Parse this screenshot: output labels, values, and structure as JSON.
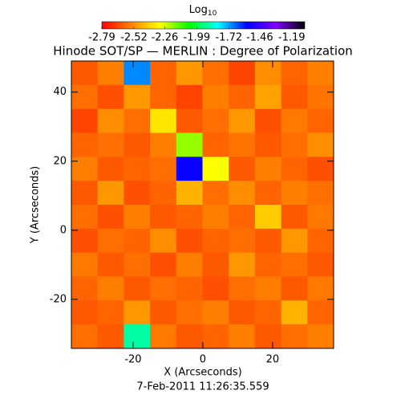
{
  "chart_data": {
    "type": "heatmap",
    "title": "Hinode SOT/SP — MERLIN : Degree of Polarization",
    "colorbar_label": {
      "text": "Log",
      "subscript": "10"
    },
    "colorbar_ticks": [
      -2.79,
      -2.52,
      -2.26,
      -1.99,
      -1.72,
      -1.46,
      -1.19
    ],
    "clim": [
      -2.79,
      -1.08
    ],
    "colormap": [
      "#ff0000",
      "#ff8000",
      "#ffff00",
      "#00ff00",
      "#00ffff",
      "#0000ff",
      "#8000ff",
      "#000000"
    ],
    "x_label": "X (Arcseconds)",
    "y_label": "Y (Arcseconds)",
    "date": "7-Feb-2011 11:26:35.559",
    "xlim": [
      -37.7,
      37.5
    ],
    "ylim": [
      -34.2,
      49
    ],
    "xticks": [
      -20,
      0,
      20
    ],
    "yticks": [
      -20,
      0,
      20,
      40
    ],
    "z": [
      [
        -2.62,
        -2.55,
        -1.7,
        -2.6,
        -2.5,
        -2.58,
        -2.66,
        -2.52,
        -2.6,
        -2.55
      ],
      [
        -2.58,
        -2.64,
        -2.5,
        -2.6,
        -2.66,
        -2.55,
        -2.6,
        -2.48,
        -2.62,
        -2.57
      ],
      [
        -2.66,
        -2.52,
        -2.58,
        -2.35,
        -2.62,
        -2.58,
        -2.5,
        -2.64,
        -2.56,
        -2.6
      ],
      [
        -2.6,
        -2.58,
        -2.62,
        -2.55,
        -2.2,
        -2.6,
        -2.57,
        -2.62,
        -2.58,
        -2.52
      ],
      [
        -2.55,
        -2.62,
        -2.6,
        -2.58,
        -1.55,
        -2.3,
        -2.62,
        -2.55,
        -2.6,
        -2.64
      ],
      [
        -2.62,
        -2.5,
        -2.64,
        -2.6,
        -2.45,
        -2.58,
        -2.52,
        -2.6,
        -2.55,
        -2.58
      ],
      [
        -2.58,
        -2.64,
        -2.55,
        -2.62,
        -2.6,
        -2.55,
        -2.6,
        -2.4,
        -2.62,
        -2.56
      ],
      [
        -2.64,
        -2.58,
        -2.6,
        -2.52,
        -2.64,
        -2.6,
        -2.58,
        -2.62,
        -2.5,
        -2.6
      ],
      [
        -2.56,
        -2.62,
        -2.58,
        -2.64,
        -2.55,
        -2.62,
        -2.5,
        -2.6,
        -2.58,
        -2.62
      ],
      [
        -2.6,
        -2.55,
        -2.62,
        -2.58,
        -2.6,
        -2.64,
        -2.58,
        -2.55,
        -2.62,
        -2.56
      ],
      [
        -2.62,
        -2.6,
        -2.5,
        -2.62,
        -2.58,
        -2.55,
        -2.62,
        -2.6,
        -2.45,
        -2.6
      ],
      [
        -2.58,
        -2.62,
        -1.9,
        -2.56,
        -2.62,
        -2.6,
        -2.55,
        -2.62,
        -2.58,
        -2.55
      ]
    ]
  }
}
